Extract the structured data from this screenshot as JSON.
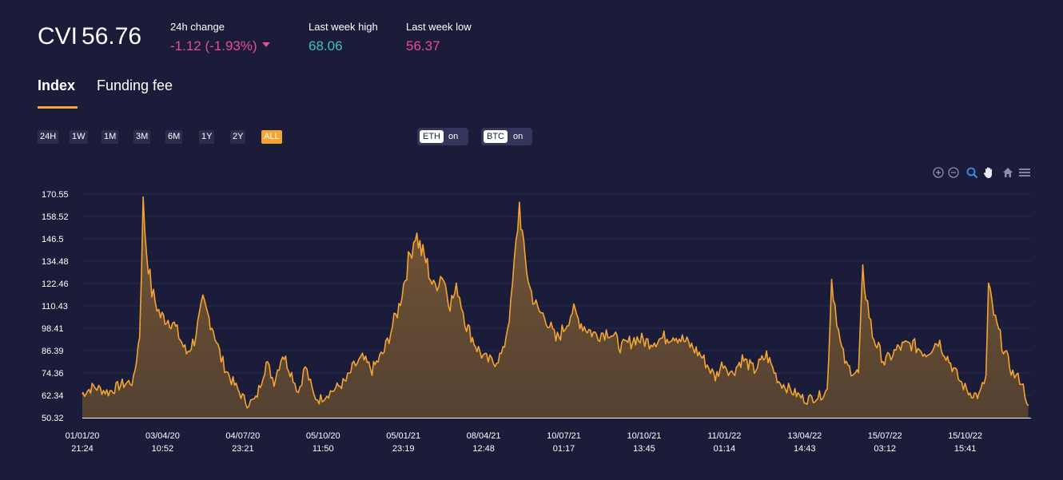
{
  "header": {
    "symbol": "CVI",
    "value": "56.76",
    "change_label": "24h change",
    "change_value": "-1.12 (-1.93%)",
    "high_label": "Last week high",
    "high_value": "68.06",
    "low_label": "Last week low",
    "low_value": "56.37"
  },
  "tabs": [
    {
      "label": "Index",
      "active": true
    },
    {
      "label": "Funding fee",
      "active": false
    }
  ],
  "periods": [
    {
      "label": "24H",
      "active": false
    },
    {
      "label": "1W",
      "active": false
    },
    {
      "label": "1M",
      "active": false
    },
    {
      "label": "3M",
      "active": false
    },
    {
      "label": "6M",
      "active": false
    },
    {
      "label": "1Y",
      "active": false
    },
    {
      "label": "2Y",
      "active": false
    },
    {
      "label": "ALL",
      "active": true
    }
  ],
  "toggles": [
    {
      "key": "ETH",
      "state": "on"
    },
    {
      "key": "BTC",
      "state": "on"
    }
  ],
  "tool_icons": [
    "zoom-in-icon",
    "zoom-out-icon",
    "zoom-select-icon",
    "pan-hand-icon",
    "home-icon",
    "menu-icon"
  ],
  "colors": {
    "background": "#1b1c3a",
    "accent": "#f4a432",
    "negative": "#e84f8b",
    "positive": "#3ec3b6",
    "area_fill": "#6d5132"
  },
  "chart_data": {
    "type": "area",
    "title": "",
    "xlabel": "",
    "ylabel": "",
    "grid": true,
    "legend": "none",
    "ylim": [
      50.32,
      170.55
    ],
    "y_ticks": [
      "170.55",
      "158.52",
      "146.5",
      "134.48",
      "122.46",
      "110.43",
      "98.41",
      "86.39",
      "74.36",
      "62.34",
      "50.32"
    ],
    "x_ticks": [
      {
        "date": "01/01/20",
        "time": "21:24"
      },
      {
        "date": "03/04/20",
        "time": "10:52"
      },
      {
        "date": "04/07/20",
        "time": "23:21"
      },
      {
        "date": "05/10/20",
        "time": "11:50"
      },
      {
        "date": "05/01/21",
        "time": "23:19"
      },
      {
        "date": "08/04/21",
        "time": "12:48"
      },
      {
        "date": "10/07/21",
        "time": "01:17"
      },
      {
        "date": "10/10/21",
        "time": "13:45"
      },
      {
        "date": "11/01/22",
        "time": "01:14"
      },
      {
        "date": "13/04/22",
        "time": "14:43"
      },
      {
        "date": "15/07/22",
        "time": "03:12"
      },
      {
        "date": "15/10/22",
        "time": "15:41"
      }
    ],
    "series": [
      {
        "x": [
          "2020-01-01",
          "2020-01-15",
          "2020-02-01",
          "2020-02-15",
          "2020-03-01",
          "2020-03-08",
          "2020-03-12",
          "2020-03-16",
          "2020-03-22",
          "2020-04-01",
          "2020-04-15",
          "2020-05-01",
          "2020-05-10",
          "2020-05-20",
          "2020-06-01",
          "2020-06-10",
          "2020-06-20",
          "2020-07-01",
          "2020-07-10",
          "2020-07-20",
          "2020-08-01",
          "2020-08-10",
          "2020-08-20",
          "2020-09-01",
          "2020-09-07",
          "2020-09-15",
          "2020-09-25",
          "2020-10-01",
          "2020-10-10",
          "2020-10-20",
          "2020-11-01",
          "2020-11-10",
          "2020-11-20",
          "2020-12-01",
          "2020-12-15",
          "2021-01-01",
          "2021-01-10",
          "2021-01-20",
          "2021-01-27",
          "2021-02-01",
          "2021-02-10",
          "2021-02-20",
          "2021-03-01",
          "2021-03-10",
          "2021-03-20",
          "2021-04-01",
          "2021-04-10",
          "2021-04-20",
          "2021-05-01",
          "2021-05-10",
          "2021-05-20",
          "2021-05-25",
          "2021-06-01",
          "2021-06-10",
          "2021-06-20",
          "2021-07-01",
          "2021-07-10",
          "2021-07-20",
          "2021-08-01",
          "2021-08-15",
          "2021-09-01",
          "2021-09-15",
          "2021-10-01",
          "2021-10-15",
          "2021-11-01",
          "2021-11-15",
          "2021-12-01",
          "2021-12-15",
          "2022-01-01",
          "2022-01-10",
          "2022-01-20",
          "2022-02-01",
          "2022-02-15",
          "2022-03-01",
          "2022-03-15",
          "2022-04-01",
          "2022-04-15",
          "2022-05-01",
          "2022-05-10",
          "2022-05-15",
          "2022-05-25",
          "2022-06-01",
          "2022-06-10",
          "2022-06-15",
          "2022-06-20",
          "2022-07-01",
          "2022-07-15",
          "2022-08-01",
          "2022-08-15",
          "2022-09-01",
          "2022-09-15",
          "2022-10-01",
          "2022-10-10",
          "2022-10-20",
          "2022-11-01",
          "2022-11-09",
          "2022-11-12",
          "2022-11-20",
          "2022-12-01",
          "2022-12-10",
          "2022-12-20",
          "2022-12-28"
        ],
        "y": [
          63,
          67,
          64,
          68,
          70,
          95,
          165,
          140,
          118,
          105,
          102,
          85,
          92,
          112,
          98,
          82,
          72,
          64,
          58,
          60,
          80,
          70,
          85,
          72,
          64,
          78,
          62,
          60,
          63,
          66,
          70,
          78,
          82,
          76,
          86,
          110,
          130,
          150,
          140,
          135,
          120,
          128,
          112,
          120,
          100,
          88,
          82,
          80,
          85,
          110,
          165,
          140,
          120,
          108,
          104,
          92,
          98,
          108,
          100,
          95,
          97,
          88,
          93,
          91,
          93,
          95,
          90,
          84,
          72,
          80,
          74,
          82,
          76,
          84,
          70,
          64,
          60,
          62,
          65,
          125,
          90,
          78,
          75,
          74,
          128,
          95,
          80,
          88,
          90,
          85,
          92,
          78,
          70,
          64,
          62,
          72,
          120,
          102,
          85,
          74,
          70,
          56.76
        ]
      }
    ]
  }
}
